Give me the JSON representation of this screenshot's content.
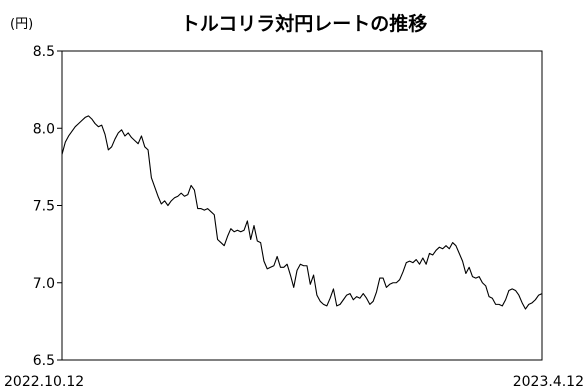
{
  "chart_data": {
    "type": "line",
    "title": "トルコリラ対円レートの推移",
    "unit_label": "(円)",
    "ylim": [
      6.5,
      8.5
    ],
    "y_ticks": [
      "8.5",
      "8.0",
      "7.5",
      "7.0",
      "6.5"
    ],
    "x_labels": [
      "2022.10.12",
      "2023.4.12"
    ],
    "grid": false,
    "colors": {
      "line": "#000000",
      "axis": "#000000"
    },
    "series": [
      {
        "values": [
          7.83,
          7.91,
          7.95,
          7.98,
          8.01,
          8.03,
          8.05,
          8.07,
          8.08,
          8.06,
          8.03,
          8.01,
          8.02,
          7.96,
          7.86,
          7.88,
          7.93,
          7.97,
          7.99,
          7.95,
          7.97,
          7.94,
          7.92,
          7.9,
          7.95,
          7.88,
          7.86,
          7.68,
          7.62,
          7.56,
          7.51,
          7.53,
          7.5,
          7.53,
          7.55,
          7.56,
          7.58,
          7.56,
          7.57,
          7.63,
          7.6,
          7.48,
          7.48,
          7.47,
          7.48,
          7.46,
          7.44,
          7.28,
          7.26,
          7.24,
          7.3,
          7.35,
          7.33,
          7.34,
          7.33,
          7.34,
          7.4,
          7.28,
          7.37,
          7.27,
          7.26,
          7.14,
          7.09,
          7.1,
          7.11,
          7.17,
          7.1,
          7.1,
          7.12,
          7.05,
          6.97,
          7.08,
          7.12,
          7.11,
          7.11,
          6.99,
          7.05,
          6.92,
          6.88,
          6.86,
          6.85,
          6.9,
          6.96,
          6.85,
          6.86,
          6.89,
          6.92,
          6.93,
          6.89,
          6.91,
          6.9,
          6.93,
          6.9,
          6.86,
          6.88,
          6.94,
          7.03,
          7.03,
          6.97,
          6.99,
          7.0,
          7.0,
          7.02,
          7.07,
          7.13,
          7.14,
          7.13,
          7.15,
          7.12,
          7.16,
          7.12,
          7.19,
          7.18,
          7.21,
          7.23,
          7.22,
          7.24,
          7.22,
          7.26,
          7.24,
          7.19,
          7.14,
          7.06,
          7.1,
          7.04,
          7.03,
          7.04,
          7.0,
          6.98,
          6.91,
          6.9,
          6.86,
          6.86,
          6.85,
          6.89,
          6.95,
          6.96,
          6.95,
          6.92,
          6.87,
          6.83,
          6.86,
          6.87,
          6.89,
          6.92,
          6.93
        ]
      }
    ]
  }
}
